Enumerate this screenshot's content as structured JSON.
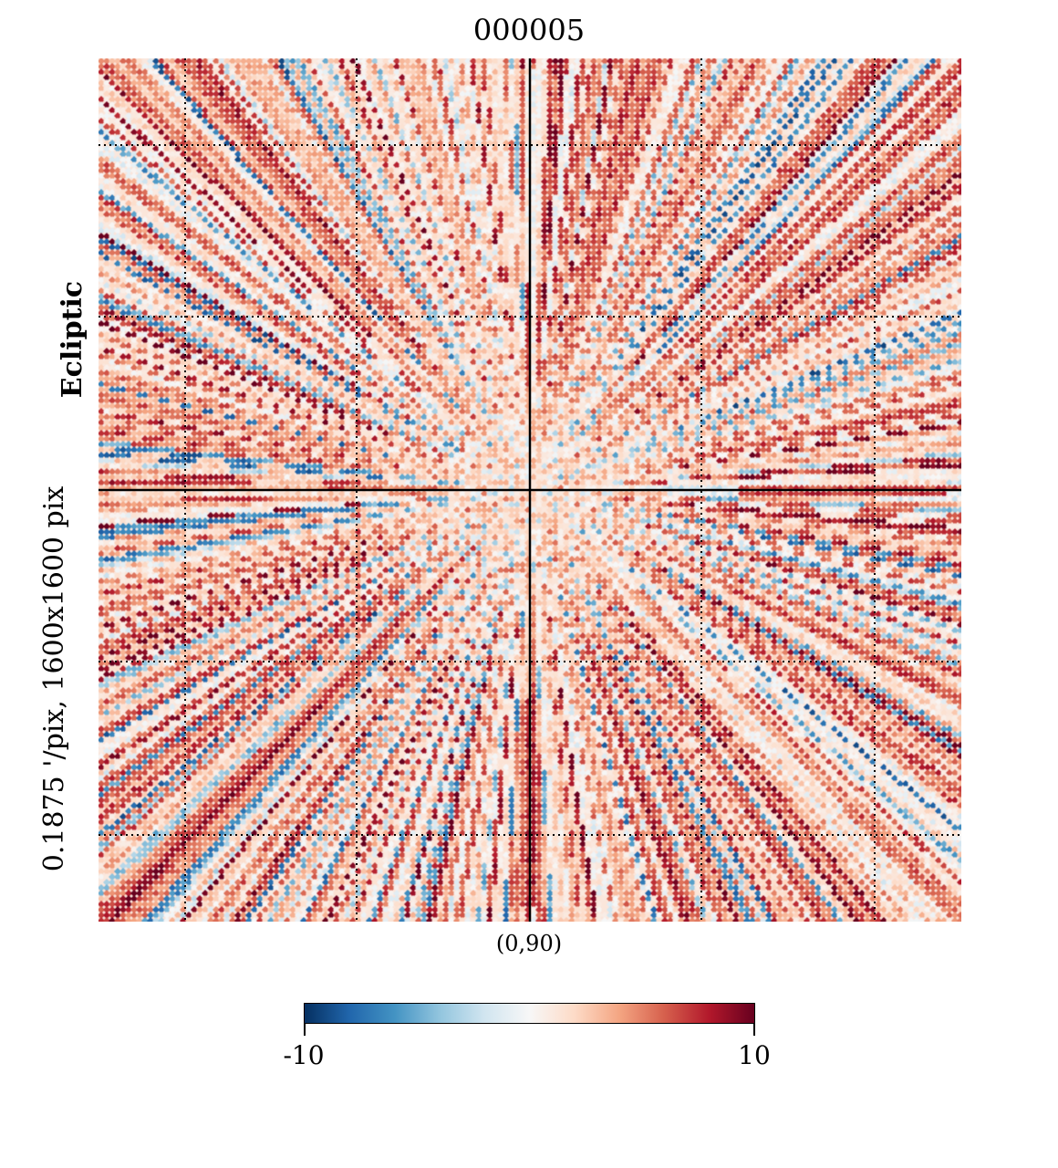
{
  "chart_data": {
    "type": "heatmap",
    "projection": "gnomonic",
    "title": "000005",
    "coord_label": "Ecliptic",
    "resolution_label": "0.1875 '/pix,   1600x1600 pix",
    "center_label": "(0,90)",
    "colormap": "RdBu_r",
    "colormap_stops": [
      "#053061",
      "#2166ac",
      "#4393c3",
      "#92c5de",
      "#d1e5f0",
      "#f7f7f7",
      "#fddbc7",
      "#f4a582",
      "#d6604d",
      "#b2182b",
      "#67001f"
    ],
    "vmin": -10,
    "vmax": 10,
    "colorbar": {
      "min_label": "-10",
      "max_label": "10"
    },
    "graticule": true,
    "graticule_style": "dotted",
    "center_lines": "solid",
    "pattern": "radial streaks from the ecliptic pole, mostly positive (red) values with scattered negative (blue) streaks"
  }
}
